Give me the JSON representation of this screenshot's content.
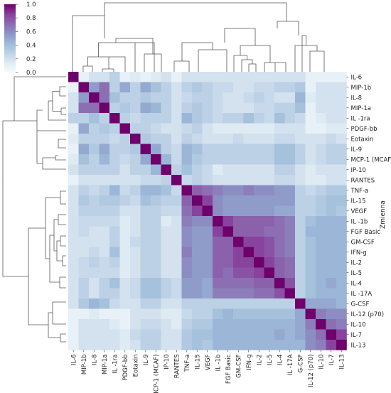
{
  "chart_data": {
    "type": "heatmap",
    "title": "",
    "ylabel": "Zmienna",
    "labels": [
      "IL-6",
      "MIP-1b",
      "IL-8",
      "MIP-1a",
      "IL -1ra",
      "PDGF-bb",
      "Eotaxin",
      "IL-9",
      "MCP-1 (MCAF)",
      "IP-10",
      "RANTES",
      "TNF-a",
      "IL-15",
      "VEGF",
      "IL -1b",
      "FGF Basic",
      "GM-CSF",
      "IFN-g",
      "IL-2",
      "IL-5",
      "IL-4",
      "IL -17A",
      "G-CSF",
      "IL-12 (p70)",
      "IL-10",
      "IL-7",
      "IL-13"
    ],
    "colorbar": {
      "ticks": [
        "1.0",
        "0.8",
        "0.6",
        "0.4",
        "0.2",
        "0.0"
      ],
      "min": 0.0,
      "max": 1.0
    },
    "colormap": [
      "#f7fcfd",
      "#e0ecf4",
      "#bfd3e6",
      "#9ebcda",
      "#8c96c6",
      "#8c6bb1",
      "#88419d",
      "#6e016b"
    ],
    "values": [
      [
        1.0,
        0.1,
        0.2,
        0.2,
        0.3,
        0.1,
        0.15,
        0.1,
        0.15,
        0.2,
        0.1,
        0.2,
        0.2,
        0.2,
        0.2,
        0.2,
        0.2,
        0.2,
        0.2,
        0.2,
        0.2,
        0.2,
        0.2,
        0.1,
        0.1,
        0.1,
        0.1
      ],
      [
        0.1,
        1.0,
        0.55,
        0.7,
        0.3,
        0.5,
        0.3,
        0.5,
        0.4,
        0.3,
        0.2,
        0.3,
        0.35,
        0.3,
        0.25,
        0.25,
        0.2,
        0.2,
        0.25,
        0.25,
        0.3,
        0.3,
        0.35,
        0.1,
        0.2,
        0.2,
        0.2
      ],
      [
        0.2,
        0.55,
        1.0,
        0.7,
        0.4,
        0.3,
        0.3,
        0.35,
        0.3,
        0.3,
        0.2,
        0.25,
        0.3,
        0.3,
        0.25,
        0.2,
        0.2,
        0.25,
        0.3,
        0.25,
        0.2,
        0.2,
        0.45,
        0.15,
        0.2,
        0.2,
        0.2
      ],
      [
        0.2,
        0.7,
        0.7,
        1.0,
        0.3,
        0.35,
        0.3,
        0.5,
        0.45,
        0.3,
        0.2,
        0.3,
        0.35,
        0.3,
        0.25,
        0.2,
        0.2,
        0.2,
        0.25,
        0.25,
        0.3,
        0.3,
        0.4,
        0.1,
        0.2,
        0.2,
        0.2
      ],
      [
        0.3,
        0.3,
        0.4,
        0.3,
        1.0,
        0.3,
        0.25,
        0.3,
        0.3,
        0.3,
        0.2,
        0.45,
        0.35,
        0.3,
        0.25,
        0.3,
        0.3,
        0.4,
        0.3,
        0.25,
        0.4,
        0.3,
        0.25,
        0.1,
        0.15,
        0.2,
        0.2
      ],
      [
        0.1,
        0.5,
        0.3,
        0.35,
        0.3,
        1.0,
        0.3,
        0.3,
        0.25,
        0.2,
        0.2,
        0.25,
        0.3,
        0.2,
        0.15,
        0.15,
        0.15,
        0.15,
        0.15,
        0.15,
        0.2,
        0.2,
        0.2,
        0.1,
        0.1,
        0.15,
        0.15
      ],
      [
        0.15,
        0.3,
        0.3,
        0.3,
        0.25,
        0.3,
        1.0,
        0.35,
        0.3,
        0.3,
        0.2,
        0.3,
        0.25,
        0.2,
        0.2,
        0.2,
        0.25,
        0.2,
        0.2,
        0.2,
        0.25,
        0.25,
        0.2,
        0.2,
        0.2,
        0.25,
        0.2
      ],
      [
        0.1,
        0.5,
        0.35,
        0.5,
        0.3,
        0.3,
        0.35,
        1.0,
        0.5,
        0.3,
        0.25,
        0.45,
        0.4,
        0.3,
        0.3,
        0.3,
        0.3,
        0.3,
        0.3,
        0.3,
        0.4,
        0.4,
        0.3,
        0.2,
        0.25,
        0.3,
        0.3
      ],
      [
        0.15,
        0.4,
        0.3,
        0.45,
        0.3,
        0.25,
        0.3,
        0.5,
        1.0,
        0.45,
        0.25,
        0.45,
        0.35,
        0.3,
        0.3,
        0.3,
        0.3,
        0.3,
        0.3,
        0.3,
        0.4,
        0.4,
        0.3,
        0.2,
        0.25,
        0.3,
        0.3
      ],
      [
        0.2,
        0.3,
        0.3,
        0.3,
        0.3,
        0.2,
        0.3,
        0.3,
        0.45,
        1.0,
        0.3,
        0.4,
        0.3,
        0.25,
        0.15,
        0.2,
        0.2,
        0.2,
        0.2,
        0.2,
        0.3,
        0.3,
        0.2,
        0.15,
        0.2,
        0.2,
        0.2
      ],
      [
        0.1,
        0.2,
        0.2,
        0.2,
        0.2,
        0.2,
        0.2,
        0.25,
        0.25,
        0.3,
        1.0,
        0.25,
        0.3,
        0.25,
        0.2,
        0.2,
        0.2,
        0.2,
        0.2,
        0.2,
        0.25,
        0.25,
        0.2,
        0.15,
        0.15,
        0.2,
        0.2
      ],
      [
        0.2,
        0.3,
        0.25,
        0.3,
        0.45,
        0.25,
        0.3,
        0.45,
        0.45,
        0.4,
        0.25,
        1.0,
        0.75,
        0.7,
        0.65,
        0.6,
        0.6,
        0.65,
        0.6,
        0.6,
        0.55,
        0.55,
        0.3,
        0.25,
        0.3,
        0.35,
        0.35
      ],
      [
        0.2,
        0.35,
        0.3,
        0.35,
        0.35,
        0.3,
        0.25,
        0.4,
        0.35,
        0.3,
        0.3,
        0.75,
        1.0,
        0.85,
        0.6,
        0.55,
        0.55,
        0.55,
        0.55,
        0.55,
        0.55,
        0.55,
        0.3,
        0.3,
        0.35,
        0.4,
        0.4
      ],
      [
        0.2,
        0.3,
        0.3,
        0.3,
        0.3,
        0.2,
        0.2,
        0.3,
        0.3,
        0.25,
        0.25,
        0.7,
        0.85,
        1.0,
        0.6,
        0.55,
        0.55,
        0.55,
        0.55,
        0.55,
        0.5,
        0.5,
        0.3,
        0.3,
        0.35,
        0.4,
        0.35
      ],
      [
        0.2,
        0.25,
        0.25,
        0.25,
        0.25,
        0.15,
        0.2,
        0.3,
        0.3,
        0.15,
        0.2,
        0.65,
        0.6,
        0.6,
        1.0,
        0.85,
        0.75,
        0.75,
        0.75,
        0.75,
        0.7,
        0.65,
        0.3,
        0.4,
        0.45,
        0.45,
        0.45
      ],
      [
        0.2,
        0.25,
        0.2,
        0.2,
        0.3,
        0.15,
        0.2,
        0.3,
        0.3,
        0.2,
        0.2,
        0.6,
        0.55,
        0.55,
        0.85,
        1.0,
        0.75,
        0.75,
        0.75,
        0.7,
        0.7,
        0.65,
        0.3,
        0.45,
        0.45,
        0.45,
        0.45
      ],
      [
        0.2,
        0.2,
        0.2,
        0.2,
        0.3,
        0.15,
        0.25,
        0.3,
        0.3,
        0.2,
        0.2,
        0.6,
        0.55,
        0.55,
        0.75,
        0.75,
        1.0,
        0.85,
        0.85,
        0.8,
        0.7,
        0.65,
        0.3,
        0.4,
        0.45,
        0.45,
        0.45
      ],
      [
        0.2,
        0.2,
        0.25,
        0.2,
        0.4,
        0.15,
        0.2,
        0.3,
        0.3,
        0.2,
        0.2,
        0.65,
        0.55,
        0.55,
        0.75,
        0.75,
        0.85,
        1.0,
        0.85,
        0.8,
        0.7,
        0.65,
        0.3,
        0.4,
        0.45,
        0.45,
        0.45
      ],
      [
        0.2,
        0.25,
        0.3,
        0.25,
        0.3,
        0.15,
        0.2,
        0.3,
        0.3,
        0.2,
        0.2,
        0.6,
        0.55,
        0.55,
        0.75,
        0.75,
        0.85,
        0.85,
        1.0,
        0.85,
        0.75,
        0.7,
        0.3,
        0.4,
        0.45,
        0.45,
        0.45
      ],
      [
        0.2,
        0.25,
        0.25,
        0.25,
        0.25,
        0.15,
        0.2,
        0.3,
        0.3,
        0.2,
        0.2,
        0.6,
        0.55,
        0.55,
        0.75,
        0.7,
        0.8,
        0.8,
        0.85,
        1.0,
        0.75,
        0.7,
        0.3,
        0.4,
        0.45,
        0.45,
        0.45
      ],
      [
        0.2,
        0.3,
        0.2,
        0.3,
        0.4,
        0.2,
        0.25,
        0.4,
        0.4,
        0.3,
        0.25,
        0.55,
        0.55,
        0.5,
        0.7,
        0.7,
        0.7,
        0.7,
        0.75,
        0.75,
        1.0,
        0.8,
        0.3,
        0.4,
        0.45,
        0.5,
        0.45
      ],
      [
        0.2,
        0.3,
        0.2,
        0.3,
        0.3,
        0.2,
        0.25,
        0.4,
        0.4,
        0.3,
        0.25,
        0.55,
        0.55,
        0.5,
        0.65,
        0.65,
        0.65,
        0.65,
        0.7,
        0.7,
        0.8,
        1.0,
        0.3,
        0.4,
        0.45,
        0.45,
        0.45
      ],
      [
        0.2,
        0.35,
        0.45,
        0.4,
        0.25,
        0.2,
        0.2,
        0.3,
        0.3,
        0.2,
        0.2,
        0.3,
        0.3,
        0.3,
        0.3,
        0.3,
        0.3,
        0.3,
        0.3,
        0.3,
        0.3,
        0.3,
        1.0,
        0.5,
        0.5,
        0.5,
        0.45
      ],
      [
        0.1,
        0.1,
        0.15,
        0.1,
        0.1,
        0.1,
        0.2,
        0.2,
        0.2,
        0.15,
        0.15,
        0.25,
        0.3,
        0.3,
        0.4,
        0.45,
        0.4,
        0.4,
        0.4,
        0.4,
        0.4,
        0.4,
        0.5,
        1.0,
        0.65,
        0.6,
        0.6
      ],
      [
        0.1,
        0.2,
        0.2,
        0.2,
        0.15,
        0.1,
        0.2,
        0.25,
        0.25,
        0.2,
        0.15,
        0.3,
        0.35,
        0.35,
        0.45,
        0.45,
        0.45,
        0.45,
        0.45,
        0.45,
        0.45,
        0.45,
        0.5,
        0.65,
        1.0,
        0.7,
        0.65
      ],
      [
        0.1,
        0.2,
        0.2,
        0.2,
        0.2,
        0.15,
        0.25,
        0.3,
        0.3,
        0.2,
        0.2,
        0.35,
        0.4,
        0.4,
        0.45,
        0.45,
        0.45,
        0.45,
        0.45,
        0.45,
        0.5,
        0.45,
        0.5,
        0.6,
        0.7,
        1.0,
        0.85
      ],
      [
        0.1,
        0.2,
        0.2,
        0.2,
        0.2,
        0.15,
        0.2,
        0.3,
        0.3,
        0.2,
        0.2,
        0.35,
        0.4,
        0.35,
        0.45,
        0.45,
        0.45,
        0.45,
        0.45,
        0.45,
        0.45,
        0.45,
        0.45,
        0.6,
        0.65,
        0.85,
        1.0
      ]
    ]
  }
}
